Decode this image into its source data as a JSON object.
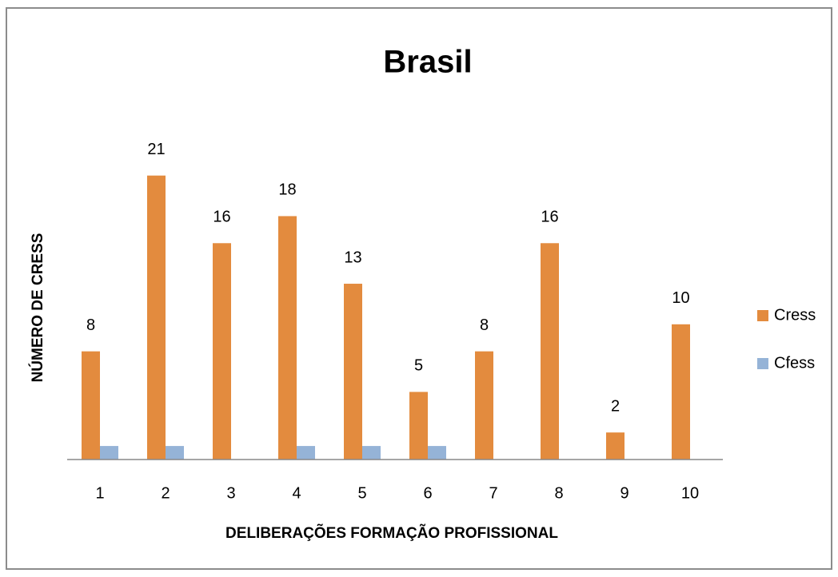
{
  "chart_data": {
    "type": "bar",
    "title": "Brasil",
    "x_label": "DELIBERAÇÕES FORMAÇÃO PROFISSIONAL",
    "y_label": "NÚMERO DE CRESS",
    "categories": [
      "1",
      "2",
      "3",
      "4",
      "5",
      "6",
      "7",
      "8",
      "9",
      "10"
    ],
    "series": [
      {
        "name": "Cress",
        "color": "#e38b3e",
        "values": [
          8,
          21,
          16,
          18,
          13,
          5,
          8,
          16,
          2,
          10
        ],
        "data_labels": true
      },
      {
        "name": "Cfess",
        "color": "#95b3d7",
        "values": [
          1,
          1,
          0,
          1,
          1,
          1,
          0,
          0,
          0,
          0
        ],
        "data_labels": false
      }
    ],
    "ylim": [
      0,
      25
    ],
    "legend": "right"
  }
}
